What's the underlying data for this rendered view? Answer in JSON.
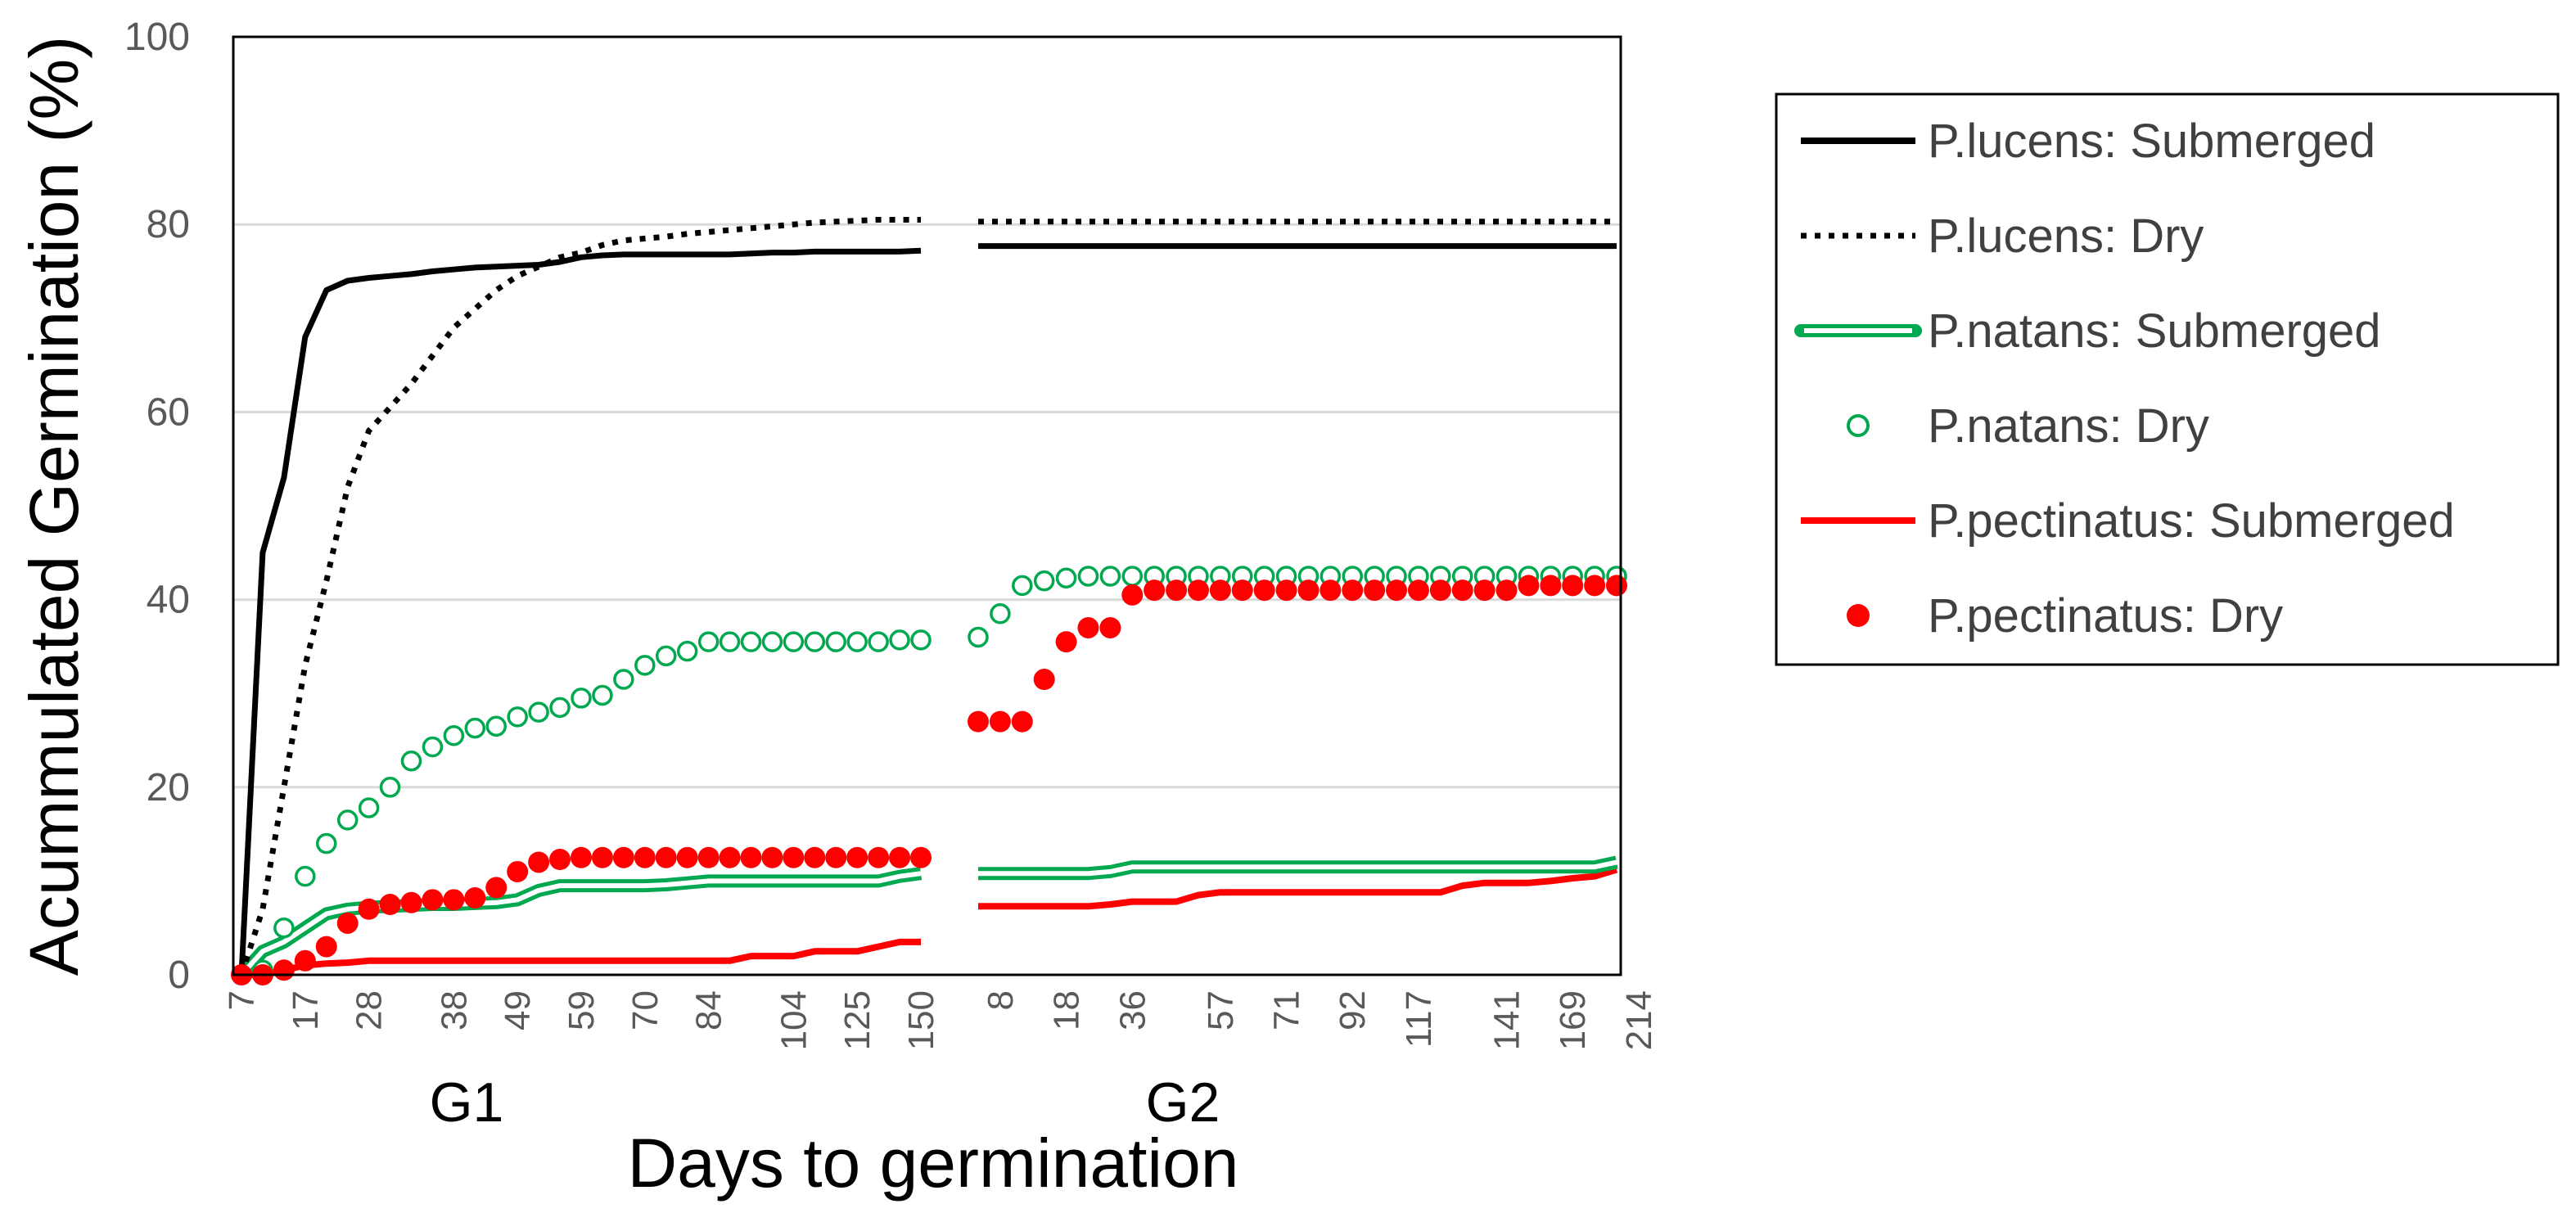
{
  "chart_data": {
    "type": "line",
    "ylabel": "Acummulated Germination (%)",
    "xlabel": "Days to germination",
    "ylim": [
      0,
      100
    ],
    "yticks": [
      0,
      20,
      40,
      60,
      80,
      100
    ],
    "groups": [
      {
        "name": "G1",
        "n_points": 33,
        "tick_labels": [
          "7",
          "17",
          "28",
          "38",
          "49",
          "59",
          "70",
          "84",
          "104",
          "125",
          "150"
        ],
        "series": {
          "lucens_sub": [
            0,
            45,
            53,
            68,
            73,
            74,
            74.3,
            74.5,
            74.7,
            75,
            75.2,
            75.4,
            75.5,
            75.6,
            75.7,
            76,
            76.5,
            76.7,
            76.8,
            76.8,
            76.8,
            76.8,
            76.8,
            76.8,
            76.9,
            77,
            77,
            77.1,
            77.1,
            77.1,
            77.1,
            77.1,
            77.2
          ],
          "lucens_dry": [
            0,
            7,
            20,
            33,
            42,
            52,
            58,
            60.5,
            63,
            66,
            69,
            71,
            73,
            74.5,
            75.5,
            76.5,
            77,
            77.8,
            78.3,
            78.5,
            78.7,
            79,
            79.2,
            79.4,
            79.6,
            79.8,
            80,
            80.2,
            80.3,
            80.4,
            80.5,
            80.5,
            80.5
          ],
          "natans_sub": [
            0,
            2.5,
            3.5,
            5,
            6.5,
            7,
            7.2,
            7.3,
            7.4,
            7.5,
            7.5,
            7.6,
            7.7,
            8,
            9,
            9.5,
            9.5,
            9.5,
            9.5,
            9.5,
            9.6,
            9.8,
            10,
            10,
            10,
            10,
            10,
            10,
            10,
            10,
            10,
            10.5,
            10.8
          ],
          "natans_dry": [
            0,
            0.5,
            5,
            10.5,
            14,
            16.5,
            17.8,
            20,
            22.8,
            24.3,
            25.5,
            26.3,
            26.5,
            27.5,
            28,
            28.5,
            29.5,
            29.8,
            31.5,
            33,
            34,
            34.5,
            35.5,
            35.5,
            35.5,
            35.5,
            35.5,
            35.5,
            35.5,
            35.5,
            35.5,
            35.7,
            35.7
          ],
          "pect_sub": [
            0,
            0,
            0.5,
            1,
            1.2,
            1.3,
            1.5,
            1.5,
            1.5,
            1.5,
            1.5,
            1.5,
            1.5,
            1.5,
            1.5,
            1.5,
            1.5,
            1.5,
            1.5,
            1.5,
            1.5,
            1.5,
            1.5,
            1.5,
            2,
            2,
            2,
            2.5,
            2.5,
            2.5,
            3,
            3.5,
            3.5
          ],
          "pect_dry": [
            0,
            0,
            0.5,
            1.5,
            3,
            5.5,
            7,
            7.5,
            7.7,
            8,
            8,
            8.2,
            9.3,
            11,
            12,
            12.3,
            12.5,
            12.5,
            12.5,
            12.5,
            12.5,
            12.5,
            12.5,
            12.5,
            12.5,
            12.5,
            12.5,
            12.5,
            12.5,
            12.5,
            12.5,
            12.5,
            12.5
          ]
        }
      },
      {
        "name": "G2",
        "n_points": 30,
        "tick_labels": [
          "8",
          "18",
          "36",
          "57",
          "71",
          "92",
          "117",
          "141",
          "169",
          "214"
        ],
        "series": {
          "lucens_sub": [
            77.7,
            77.7,
            77.7,
            77.7,
            77.7,
            77.7,
            77.7,
            77.7,
            77.7,
            77.7,
            77.7,
            77.7,
            77.7,
            77.7,
            77.7,
            77.7,
            77.7,
            77.7,
            77.7,
            77.7,
            77.7,
            77.7,
            77.7,
            77.7,
            77.7,
            77.7,
            77.7,
            77.7,
            77.7,
            77.7
          ],
          "lucens_dry": [
            80.3,
            80.3,
            80.3,
            80.3,
            80.3,
            80.3,
            80.3,
            80.3,
            80.3,
            80.3,
            80.3,
            80.3,
            80.3,
            80.3,
            80.3,
            80.3,
            80.3,
            80.3,
            80.3,
            80.3,
            80.3,
            80.3,
            80.3,
            80.3,
            80.3,
            80.3,
            80.3,
            80.3,
            80.3,
            80.3
          ],
          "natans_sub": [
            10.8,
            10.8,
            10.8,
            10.8,
            10.8,
            10.8,
            11,
            11.5,
            11.5,
            11.5,
            11.5,
            11.5,
            11.5,
            11.5,
            11.5,
            11.5,
            11.5,
            11.5,
            11.5,
            11.5,
            11.5,
            11.5,
            11.5,
            11.5,
            11.5,
            11.5,
            11.5,
            11.5,
            11.5,
            12
          ],
          "natans_dry": [
            36,
            38.5,
            41.5,
            42,
            42.3,
            42.5,
            42.5,
            42.5,
            42.5,
            42.5,
            42.5,
            42.5,
            42.5,
            42.5,
            42.5,
            42.5,
            42.5,
            42.5,
            42.5,
            42.5,
            42.5,
            42.5,
            42.5,
            42.5,
            42.5,
            42.5,
            42.5,
            42.5,
            42.5,
            42.5
          ],
          "pect_sub": [
            7.3,
            7.3,
            7.3,
            7.3,
            7.3,
            7.3,
            7.5,
            7.8,
            7.8,
            7.8,
            8.5,
            8.8,
            8.8,
            8.8,
            8.8,
            8.8,
            8.8,
            8.8,
            8.8,
            8.8,
            8.8,
            8.8,
            9.5,
            9.8,
            9.8,
            9.8,
            10,
            10.3,
            10.5,
            11.2
          ],
          "pect_dry": [
            27,
            27,
            27,
            31.5,
            35.5,
            37,
            37,
            40.5,
            41,
            41,
            41,
            41,
            41,
            41,
            41,
            41,
            41,
            41,
            41,
            41,
            41,
            41,
            41,
            41,
            41,
            41.5,
            41.5,
            41.5,
            41.5,
            41.5
          ]
        }
      }
    ],
    "legend": [
      {
        "key": "lucens_sub",
        "label": "P.lucens: Submerged",
        "style": "solid",
        "color": "#000000"
      },
      {
        "key": "lucens_dry",
        "label": "P.lucens: Dry",
        "style": "dotted",
        "color": "#000000"
      },
      {
        "key": "natans_sub",
        "label": "P.natans: Submerged",
        "style": "double",
        "color": "#00a84f"
      },
      {
        "key": "natans_dry",
        "label": "P.natans: Dry",
        "style": "open-circle",
        "color": "#00a84f"
      },
      {
        "key": "pect_sub",
        "label": "P.pectinatus: Submerged",
        "style": "solid",
        "color": "#ff0000"
      },
      {
        "key": "pect_dry",
        "label": "P.pectinatus: Dry",
        "style": "filled-circle",
        "color": "#ff0000"
      }
    ],
    "legend_position": "right"
  }
}
